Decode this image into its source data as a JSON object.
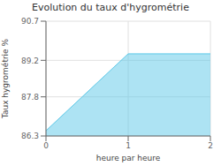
{
  "chart_data": {
    "type": "area",
    "title": "Evolution du taux d'hygrométrie",
    "x_label": "heure par heure",
    "y_label": "Taux hygrométrie %",
    "x": [
      0,
      1,
      2
    ],
    "values": [
      86.5,
      89.45,
      89.45
    ],
    "color": "#5bc8e8",
    "xlim": [
      0,
      2
    ],
    "xticks": [
      0,
      1,
      2
    ],
    "ylim": [
      86.3,
      90.7
    ],
    "yticks": [
      86.3,
      87.8,
      89.2,
      90.7
    ],
    "grid": true
  }
}
